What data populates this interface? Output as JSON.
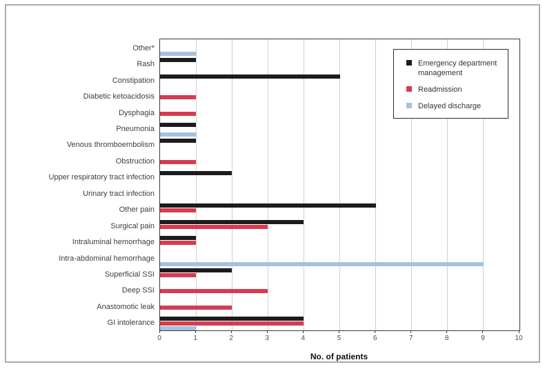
{
  "chart_data": {
    "type": "bar",
    "orientation": "horizontal",
    "title": "",
    "xlabel": "No. of patients",
    "ylabel": "",
    "xlim": [
      0,
      10
    ],
    "xticks": [
      0,
      1,
      2,
      3,
      4,
      5,
      6,
      7,
      8,
      9,
      10
    ],
    "grid": "vertical gridlines at each integer tick",
    "legend_position": "inside top-right",
    "categories": [
      "Other*",
      "Rash",
      "Constipation",
      "Diabetic ketoacidosis",
      "Dysphagia",
      "Pneumonia",
      "Venous thromboembolism",
      "Obstruction",
      "Upper respiratory tract infection",
      "Urinary tract infection",
      "Other pain",
      "Surgical pain",
      "Intraluminal hemorrhage",
      "Intra-abdominal hemorrhage",
      "Superficial SSI",
      "Deep SSI",
      "Anastomotic leak",
      "GI intolerance"
    ],
    "series": [
      {
        "name": "Emergency department management",
        "color": "#1c1c1c",
        "values": [
          0,
          1,
          5,
          0,
          0,
          1,
          1,
          0,
          2,
          0,
          6,
          4,
          1,
          0,
          2,
          0,
          0,
          4
        ]
      },
      {
        "name": "Readmission",
        "color": "#d63b50",
        "values": [
          0,
          0,
          0,
          1,
          1,
          0,
          0,
          1,
          0,
          0,
          1,
          3,
          1,
          0,
          1,
          3,
          2,
          4
        ]
      },
      {
        "name": "Delayed discharge",
        "color": "#a4c2de",
        "values": [
          1,
          0,
          0,
          0,
          0,
          1,
          0,
          0,
          0,
          0,
          0,
          0,
          0,
          9,
          0,
          0,
          0,
          1
        ]
      }
    ]
  }
}
